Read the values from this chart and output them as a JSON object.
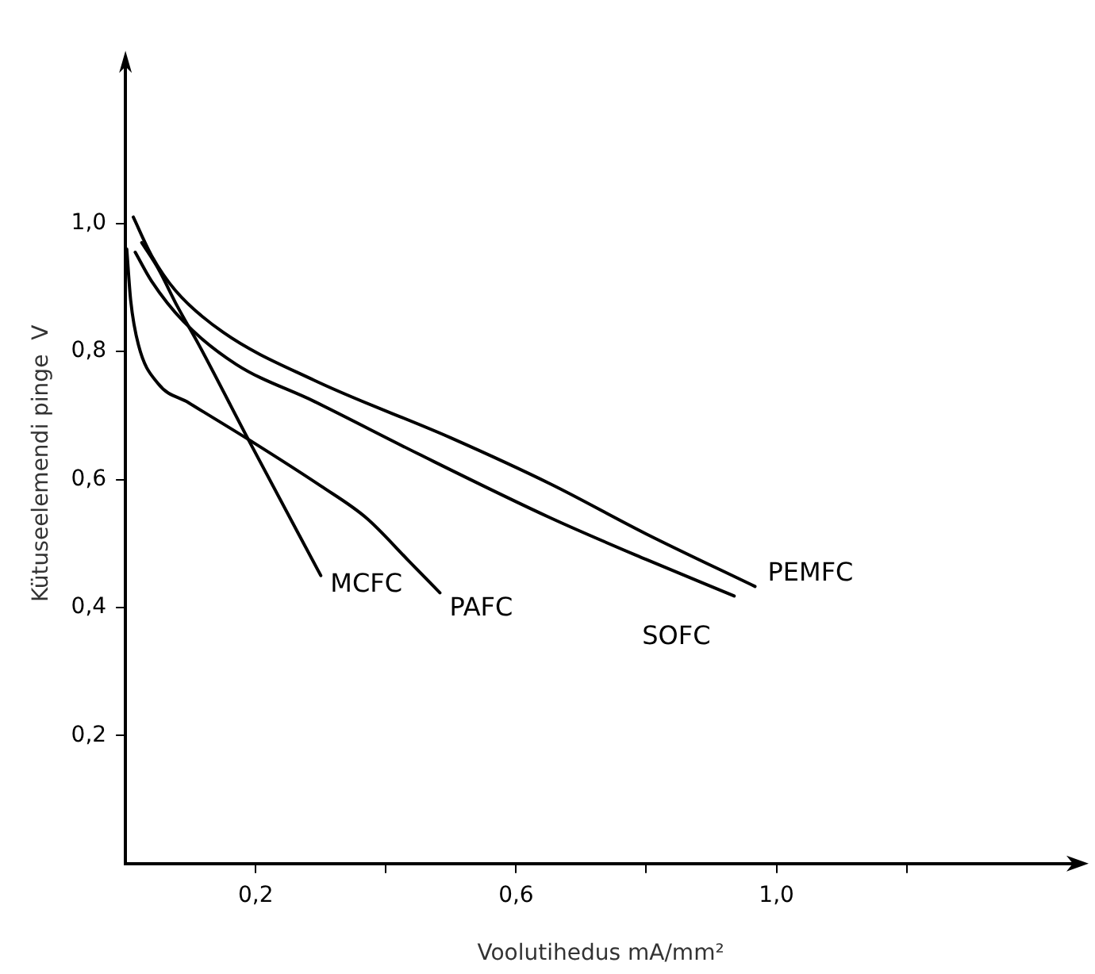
{
  "chart_data": {
    "type": "line",
    "xlabel": "Voolutihedus mA/mm²",
    "ylabel": "Kütuseelemendi pinge  V",
    "xlim": [
      0,
      1.46
    ],
    "ylim": [
      0,
      1.25
    ],
    "xticks": [
      {
        "value": 0.2,
        "label": "0,2"
      },
      {
        "value": 0.4,
        "label": null
      },
      {
        "value": 0.6,
        "label": "0,6"
      },
      {
        "value": 0.8,
        "label": null
      },
      {
        "value": 1.0,
        "label": "1,0"
      },
      {
        "value": 1.2,
        "label": null
      }
    ],
    "yticks": [
      {
        "value": 0.2,
        "label": "0,2"
      },
      {
        "value": 0.4,
        "label": "0,4"
      },
      {
        "value": 0.6,
        "label": "0,6"
      },
      {
        "value": 0.8,
        "label": "0,8"
      },
      {
        "value": 1.0,
        "label": "1,0"
      }
    ],
    "grid": false,
    "legend": false,
    "marker": "none",
    "line_style": "solid",
    "series": [
      {
        "name": "MCFC",
        "color": "#000000",
        "x": [
          0.025,
          0.05,
          0.08,
          0.113,
          0.19,
          0.3
        ],
        "values": [
          0.97,
          0.93,
          0.87,
          0.81,
          0.66,
          0.45
        ]
      },
      {
        "name": "PAFC",
        "color": "#000000",
        "x": [
          0.002,
          0.008,
          0.02,
          0.05,
          0.097,
          0.193,
          0.3,
          0.37,
          0.435,
          0.483
        ],
        "values": [
          0.96,
          0.88,
          0.81,
          0.75,
          0.72,
          0.66,
          0.59,
          0.54,
          0.473,
          0.423
        ]
      },
      {
        "name": "SOFC",
        "color": "#000000",
        "x": [
          0.015,
          0.04,
          0.089,
          0.17,
          0.29,
          0.45,
          0.653,
          0.8,
          0.935
        ],
        "values": [
          0.955,
          0.91,
          0.847,
          0.78,
          0.722,
          0.64,
          0.54,
          0.475,
          0.418
        ]
      },
      {
        "name": "PEMFC",
        "color": "#000000",
        "x": [
          0.012,
          0.04,
          0.077,
          0.15,
          0.29,
          0.5,
          0.653,
          0.8,
          0.967
        ],
        "values": [
          1.01,
          0.95,
          0.895,
          0.83,
          0.755,
          0.665,
          0.593,
          0.515,
          0.433
        ]
      }
    ]
  }
}
